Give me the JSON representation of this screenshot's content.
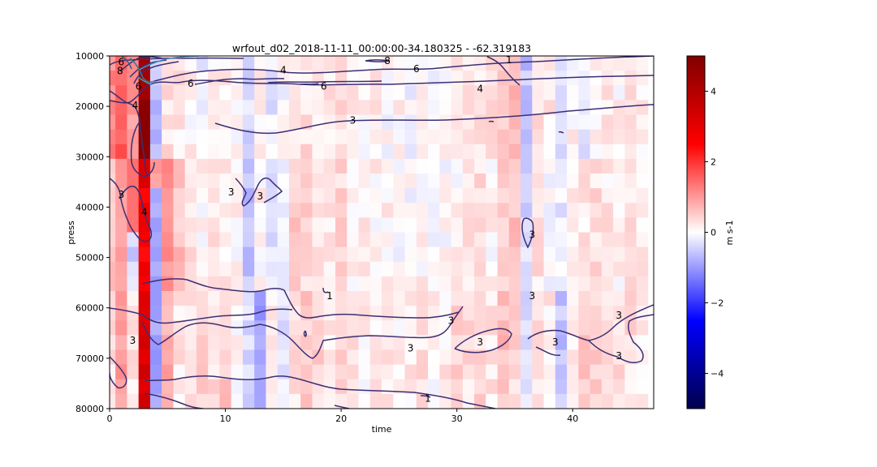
{
  "chart_data": {
    "type": "heatmap",
    "title": "wrfout_d02_2018-11-11_00:00:00-34.180325 - -62.319183",
    "xlabel": "time",
    "ylabel": "press",
    "xlim": [
      0,
      47
    ],
    "ylim": [
      80000,
      10000
    ],
    "y_inverted": true,
    "x_ticks": [
      0,
      10,
      20,
      30,
      40
    ],
    "x_tick_labels": [
      "0",
      "10",
      "20",
      "30",
      "40"
    ],
    "y_ticks": [
      10000,
      20000,
      30000,
      40000,
      50000,
      60000,
      70000,
      80000
    ],
    "y_tick_labels": [
      "10000",
      "20000",
      "30000",
      "40000",
      "50000",
      "60000",
      "70000",
      "80000"
    ],
    "colormap": "seismic",
    "colorbar": {
      "label": "m s-1",
      "min": -5,
      "max": 5,
      "ticks": [
        -4,
        -2,
        0,
        2,
        4
      ],
      "tick_labels": [
        "−4",
        "−2",
        "0",
        "2",
        "4"
      ]
    },
    "heatmap_columns_note": "cell values by time index (rows: upper 10000-30000, mid 30000-55000, lower 55000-80000 Pa)",
    "column_values_upper": [
      1.2,
      1.6,
      1.0,
      4.2,
      -0.6,
      0.3,
      0.2,
      0.1,
      -0.2,
      0.1,
      0.2,
      0.0,
      -0.4,
      0.1,
      -0.2,
      0.0,
      0.2,
      0.3,
      0.1,
      0.2,
      0.3,
      0.2,
      0.1,
      0.2,
      0.0,
      0.1,
      -0.1,
      0.1,
      0.0,
      0.1,
      0.2,
      0.2,
      0.3,
      0.3,
      0.5,
      0.8,
      -0.6,
      0.4,
      0.2,
      -0.4,
      0.1,
      -0.2,
      0.1,
      0.2,
      0.1,
      0.2,
      0.1
    ],
    "column_values_mid": [
      0.6,
      0.9,
      -0.4,
      2.6,
      0.8,
      1.0,
      0.6,
      0.3,
      0.1,
      0.3,
      0.2,
      0.1,
      -0.6,
      0.1,
      -0.3,
      -0.1,
      0.5,
      0.4,
      0.3,
      0.2,
      0.4,
      0.1,
      0.2,
      0.1,
      0.1,
      0.0,
      0.0,
      0.1,
      -0.1,
      0.0,
      0.1,
      0.2,
      0.3,
      0.1,
      0.4,
      0.6,
      -0.4,
      0.3,
      0.0,
      -0.2,
      0.1,
      0.2,
      0.3,
      0.2,
      0.1,
      0.3,
      0.2
    ],
    "column_values_lower": [
      0.3,
      1.0,
      0.2,
      3.2,
      -1.4,
      0.8,
      0.2,
      0.3,
      0.4,
      0.3,
      0.5,
      0.1,
      -0.4,
      -0.9,
      0.2,
      -0.2,
      0.3,
      0.5,
      0.4,
      0.2,
      0.4,
      0.2,
      0.1,
      0.2,
      0.2,
      0.1,
      0.2,
      0.3,
      0.1,
      0.2,
      0.5,
      0.3,
      0.4,
      0.2,
      0.6,
      0.4,
      -0.3,
      0.3,
      0.2,
      -0.6,
      0.2,
      0.5,
      0.4,
      0.2,
      0.4,
      0.3,
      0.2
    ],
    "contours": {
      "color": "#3b2e73",
      "levels": [
        1,
        3,
        4,
        6,
        8
      ],
      "labels": [
        {
          "text": "6",
          "x": 1.0,
          "y": 11200
        },
        {
          "text": "8",
          "x": 0.9,
          "y": 13000
        },
        {
          "text": "6",
          "x": 2.5,
          "y": 16000
        },
        {
          "text": "6",
          "x": 7.0,
          "y": 15500
        },
        {
          "text": "4",
          "x": 15.0,
          "y": 12800
        },
        {
          "text": "6",
          "x": 18.5,
          "y": 16000
        },
        {
          "text": "8",
          "x": 24.0,
          "y": 11000
        },
        {
          "text": "6",
          "x": 26.5,
          "y": 12600
        },
        {
          "text": "4",
          "x": 32.0,
          "y": 16500
        },
        {
          "text": "1",
          "x": 34.5,
          "y": 10800
        },
        {
          "text": "4",
          "x": 2.2,
          "y": 19800
        },
        {
          "text": "3",
          "x": 21.0,
          "y": 22800
        },
        {
          "text": "3",
          "x": 1.0,
          "y": 37500
        },
        {
          "text": "3",
          "x": 10.5,
          "y": 37000
        },
        {
          "text": "3",
          "x": 13.0,
          "y": 37800
        },
        {
          "text": "4",
          "x": 3.0,
          "y": 41000
        },
        {
          "text": "3",
          "x": 36.5,
          "y": 45500
        },
        {
          "text": "1",
          "x": 19.0,
          "y": 57600
        },
        {
          "text": "3",
          "x": 36.5,
          "y": 57600
        },
        {
          "text": "3",
          "x": 29.5,
          "y": 62500
        },
        {
          "text": "3",
          "x": 44.0,
          "y": 61500
        },
        {
          "text": "3",
          "x": 2.0,
          "y": 66500
        },
        {
          "text": "3",
          "x": 32.0,
          "y": 66800
        },
        {
          "text": "3",
          "x": 38.5,
          "y": 66800
        },
        {
          "text": "3",
          "x": 26.0,
          "y": 68000
        },
        {
          "text": "3",
          "x": 44.0,
          "y": 69500
        },
        {
          "text": "1",
          "x": 27.5,
          "y": 78000
        }
      ]
    }
  }
}
